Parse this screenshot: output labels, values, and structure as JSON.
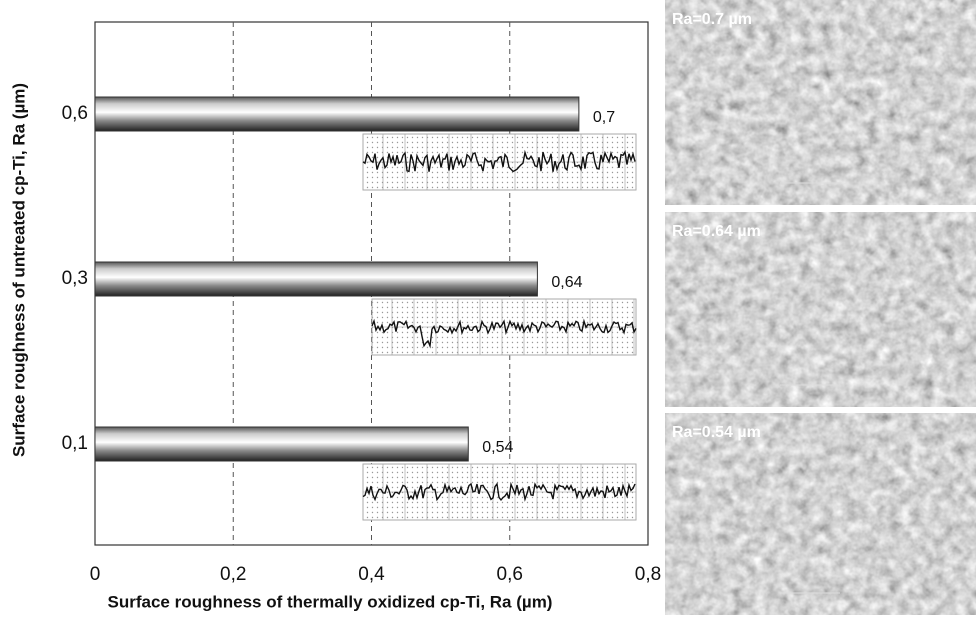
{
  "chart_data": {
    "type": "bar",
    "orientation": "horizontal",
    "x_label": "Surface roughness of thermally oxidized cp-Ti, Ra (µm)",
    "y_label": "Surface roughness of untreated cp-Ti, Ra (µm)",
    "categories": [
      "0,6",
      "0,3",
      "0,1"
    ],
    "values": [
      0.7,
      0.64,
      0.54
    ],
    "value_labels": [
      "0,7",
      "0,64",
      "0,54"
    ],
    "xlim": [
      0,
      0.8
    ],
    "xticks": [
      0,
      {
        "value": 0.2,
        "label": "0,2"
      },
      {
        "value": 0.4,
        "label": "0,4"
      },
      {
        "value": 0.6,
        "label": "0,6"
      },
      {
        "value": 0.8,
        "label": "0,8"
      }
    ],
    "grid": true
  },
  "images": [
    {
      "label": "Ra=0.7 µm"
    },
    {
      "label": "Ra=0.64 µm"
    },
    {
      "label": "Ra=0.54 µm"
    }
  ]
}
